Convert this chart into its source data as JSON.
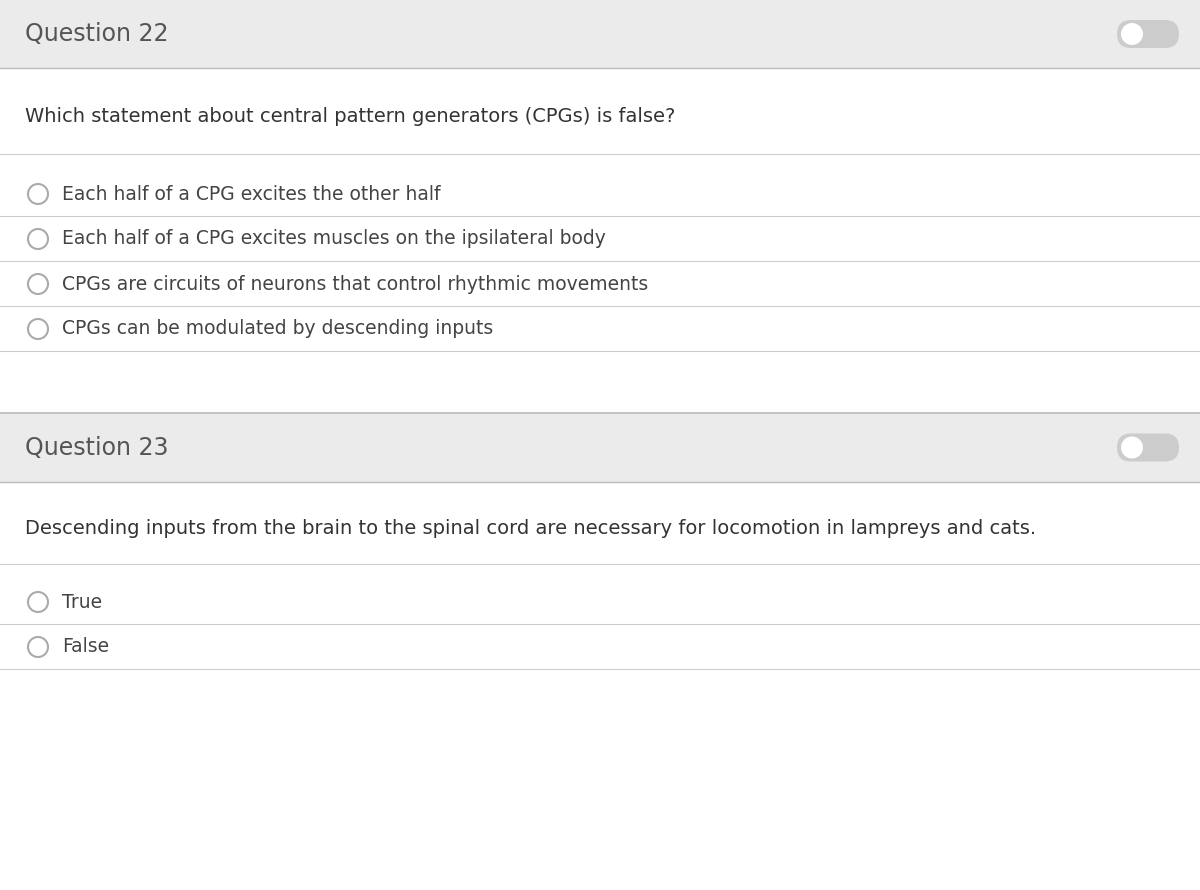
{
  "background_color": "#ffffff",
  "header_bg_color": "#ebebeb",
  "divider_color": "#cccccc",
  "question22_title": "Question 22",
  "question22_body": "Which statement about central pattern generators (CPGs) is false?",
  "question22_options": [
    "Each half of a CPG excites the other half",
    "Each half of a CPG excites muscles on the ipsilateral body",
    "CPGs are circuits of neurons that control rhythmic movements",
    "CPGs can be modulated by descending inputs"
  ],
  "question23_title": "Question 23",
  "question23_body": "Descending inputs from the brain to the spinal cord are necessary for locomotion in lampreys and cats.",
  "question23_options": [
    "True",
    "False"
  ],
  "title_fontsize": 17,
  "body_fontsize": 14,
  "option_fontsize": 13.5,
  "title_color": "#555555",
  "body_color": "#333333",
  "option_color": "#444444",
  "circle_color": "#aaaaaa",
  "toggle_bg_color": "#cccccc",
  "toggle_knob_color": "#ffffff"
}
